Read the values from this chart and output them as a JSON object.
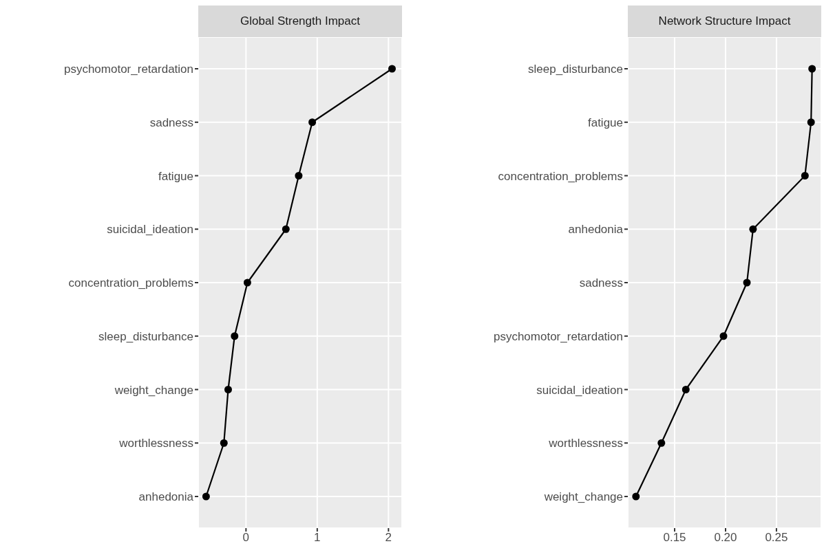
{
  "chart_data": [
    {
      "type": "line",
      "title": "Global Strength Impact",
      "orientation": "horizontal",
      "categories": [
        "psychomotor_retardation",
        "sadness",
        "fatigue",
        "suicidal_ideation",
        "concentration_problems",
        "sleep_disturbance",
        "weight_change",
        "worthlessness",
        "anhedonia"
      ],
      "series": [
        {
          "color": "#000000",
          "values": [
            2.05,
            0.93,
            0.74,
            0.56,
            0.02,
            -0.16,
            -0.25,
            -0.31,
            -0.56
          ]
        }
      ],
      "xlim": [
        -0.67,
        2.19
      ],
      "xticks": [
        0,
        1,
        2
      ],
      "grid": true,
      "marker": "circle",
      "line_style": "solid",
      "legend": false
    },
    {
      "type": "line",
      "title": "Network Structure Impact",
      "orientation": "horizontal",
      "categories": [
        "sleep_disturbance",
        "fatigue",
        "concentration_problems",
        "anhedonia",
        "sadness",
        "psychomotor_retardation",
        "suicidal_ideation",
        "worthlessness",
        "weight_change"
      ],
      "series": [
        {
          "color": "#000000",
          "values": [
            0.285,
            0.284,
            0.278,
            0.227,
            0.221,
            0.198,
            0.161,
            0.137,
            0.112
          ]
        }
      ],
      "xlim": [
        0.104,
        0.294
      ],
      "xticks": [
        {
          "value": 0.15,
          "label": "0.15"
        },
        {
          "value": 0.2,
          "label": "0.20"
        },
        {
          "value": 0.25,
          "label": "0.25"
        }
      ],
      "grid": true,
      "marker": "circle",
      "line_style": "solid",
      "legend": false
    }
  ]
}
